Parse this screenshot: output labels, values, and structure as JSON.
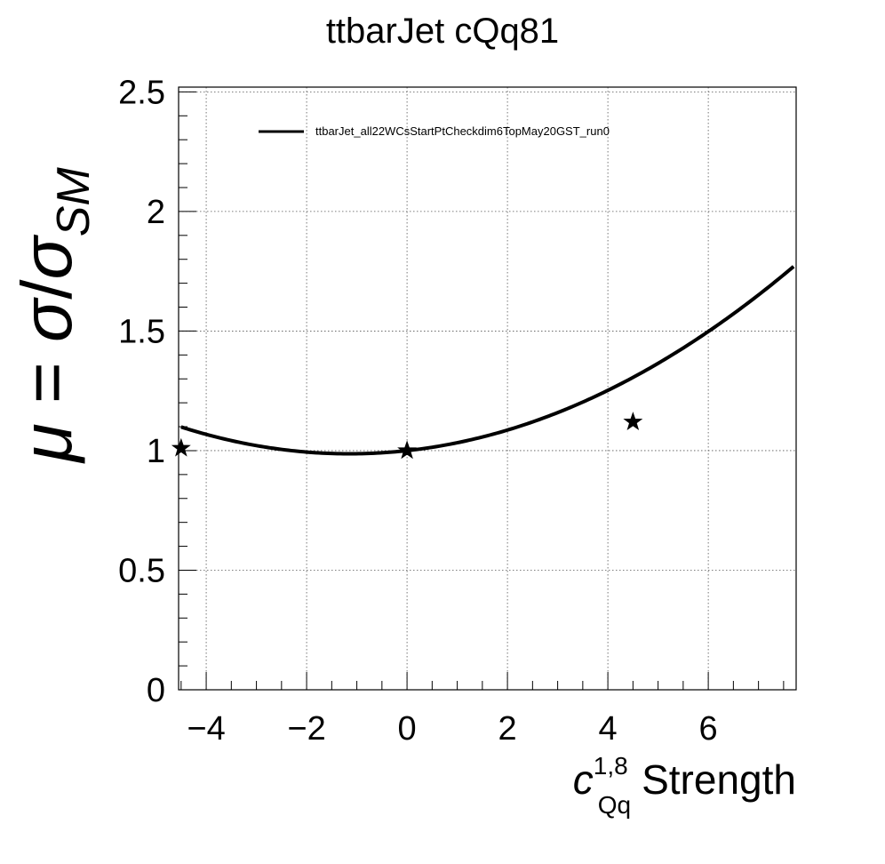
{
  "chart_data": {
    "type": "line",
    "title": "ttbarJet cQq81",
    "xlabel": {
      "symbol": "c",
      "superscript": "1,8",
      "subscript": "Qq",
      "text": "Strength"
    },
    "ylabel": {
      "mu": "μ",
      "equals": " = ",
      "sigma": "σ",
      "slash": "/",
      "subscript": "SM"
    },
    "xlim": [
      -4.55,
      7.75
    ],
    "ylim": [
      0,
      2.52
    ],
    "x_ticks": [
      -4,
      -2,
      0,
      2,
      4,
      6
    ],
    "x_tick_labels": [
      "−4",
      "−2",
      "0",
      "2",
      "4",
      "6"
    ],
    "y_ticks": [
      0,
      0.5,
      1,
      1.5,
      2,
      2.5
    ],
    "y_tick_labels": [
      "0",
      "0.5",
      "1",
      "1.5",
      "2",
      "2.5"
    ],
    "grid": true,
    "legend_position": "top",
    "series": [
      {
        "name": "ttbarJet_all22WCsStartPtCheckdim6TopMay20GST_run0",
        "kind": "fit-curve",
        "fit": {
          "a": 0.01,
          "b": 0.023,
          "c": 1.0
        },
        "x_range": [
          -4.5,
          7.7
        ]
      },
      {
        "name": "",
        "kind": "points",
        "marker": "star",
        "x": [
          -4.5,
          0,
          4.5
        ],
        "y": [
          1.01,
          1.0,
          1.12
        ]
      }
    ]
  }
}
